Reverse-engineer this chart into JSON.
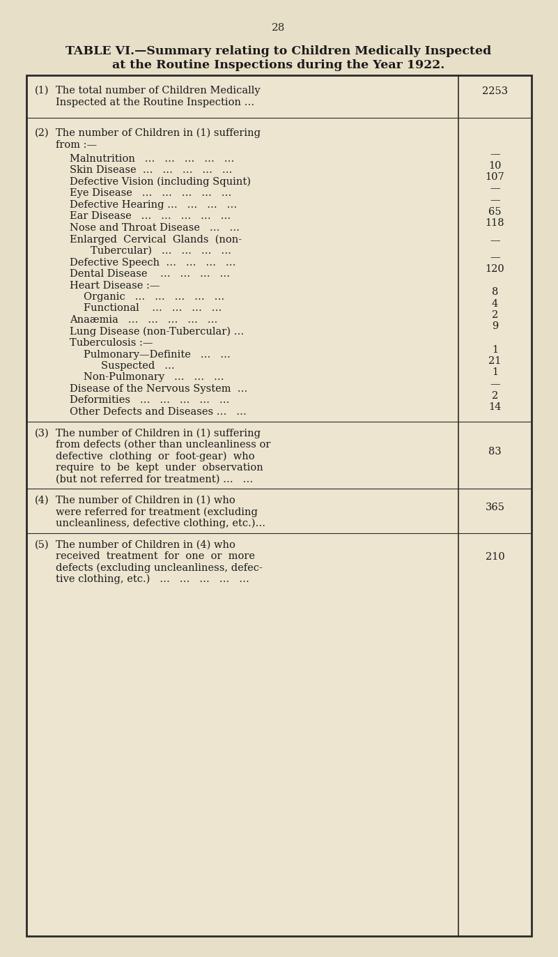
{
  "page_number": "28",
  "title_line1": "TABLE VI.—Summary relating to Children Medically Inspected",
  "title_line2": "at the Routine Inspections during the Year 1922.",
  "bg_color": "#e8dfc8",
  "table_bg": "#ede5d0",
  "sections": [
    {
      "number": "(1)",
      "text_lines": [
        "The total number of Children Medically",
        "Inspected at the Routine Inspection …"
      ],
      "value": "2253",
      "indent": 0
    },
    {
      "number": "(2)",
      "text_lines": [
        "The number of Children in (1) suffering",
        "from :—"
      ],
      "value": "",
      "indent": 0
    },
    {
      "number": "",
      "text_lines": [
        "Malnutrition   …   …   …   …   …"
      ],
      "value": "—",
      "indent": 2
    },
    {
      "number": "",
      "text_lines": [
        "Skin Disease  …   …   …   …   …"
      ],
      "value": "10",
      "indent": 2
    },
    {
      "number": "",
      "text_lines": [
        "Defective Vision (including Squint)"
      ],
      "value": "107",
      "indent": 2
    },
    {
      "number": "",
      "text_lines": [
        "Eye Disease   …   …   …   …   …"
      ],
      "value": "—",
      "indent": 2
    },
    {
      "number": "",
      "text_lines": [
        "Defective Hearing …   …   …   …"
      ],
      "value": "—",
      "indent": 2
    },
    {
      "number": "",
      "text_lines": [
        "Ear Disease   …   …   …   …   …"
      ],
      "value": "65",
      "indent": 2
    },
    {
      "number": "",
      "text_lines": [
        "Nose and Throat Disease   …   …"
      ],
      "value": "118",
      "indent": 2
    },
    {
      "number": "",
      "text_lines": [
        "Enlarged  Cervical  Glands  (non-",
        "        Tubercular)   …   …   …   …"
      ],
      "value": "—",
      "indent": 2
    },
    {
      "number": "",
      "text_lines": [
        "Defective Speech  …   …   …   …"
      ],
      "value": "—",
      "indent": 2
    },
    {
      "number": "",
      "text_lines": [
        "Dental Disease    …   …   …   …"
      ],
      "value": "120",
      "indent": 2
    },
    {
      "number": "",
      "text_lines": [
        "Heart Disease :—"
      ],
      "value": "",
      "indent": 2
    },
    {
      "number": "",
      "text_lines": [
        "Organic   …   …   …   …   …"
      ],
      "value": "8",
      "indent": 3
    },
    {
      "number": "",
      "text_lines": [
        "Functional    …   …   …   …"
      ],
      "value": "4",
      "indent": 3
    },
    {
      "number": "",
      "text_lines": [
        "Anaæmia   …   …   …   …   …"
      ],
      "value": "2",
      "indent": 2
    },
    {
      "number": "",
      "text_lines": [
        "Lung Disease (non-Tubercular) …"
      ],
      "value": "9",
      "indent": 2
    },
    {
      "number": "",
      "text_lines": [
        "Tuberculosis :—"
      ],
      "value": "",
      "indent": 2
    },
    {
      "number": "",
      "text_lines": [
        "Pulmonary—Definite   …   …"
      ],
      "value": "1",
      "indent": 3
    },
    {
      "number": "",
      "text_lines": [
        "Suspected   …"
      ],
      "value": "21",
      "indent": 4
    },
    {
      "number": "",
      "text_lines": [
        "Non-Pulmonary   …   …   …"
      ],
      "value": "1",
      "indent": 3
    },
    {
      "number": "",
      "text_lines": [
        "Disease of the Nervous System  …"
      ],
      "value": "—",
      "indent": 2
    },
    {
      "number": "",
      "text_lines": [
        "Deformities   …   …   …   …   …"
      ],
      "value": "2",
      "indent": 2
    },
    {
      "number": "",
      "text_lines": [
        "Other Defects and Diseases …   …"
      ],
      "value": "14",
      "indent": 2
    },
    {
      "number": "(3)",
      "text_lines": [
        "The number of Children in (1) suffering",
        "from defects (other than uncleanliness or",
        "defective  clothing  or  foot-gear)  who",
        "require  to  be  kept  under  observation",
        "(but not referred for treatment) …   …"
      ],
      "value": "83",
      "indent": 0
    },
    {
      "number": "(4)",
      "text_lines": [
        "The number of Children in (1) who",
        "were referred for treatment (excluding",
        "uncleanliness, defective clothing, etc.)…"
      ],
      "value": "365",
      "indent": 0
    },
    {
      "number": "(5)",
      "text_lines": [
        "The number of Children in (4) who",
        "received  treatment  for  one  or  more",
        "defects (excluding uncleanliness, defec-",
        "tive clothing, etc.)   …   …   …   …   …"
      ],
      "value": "210",
      "indent": 0
    }
  ]
}
